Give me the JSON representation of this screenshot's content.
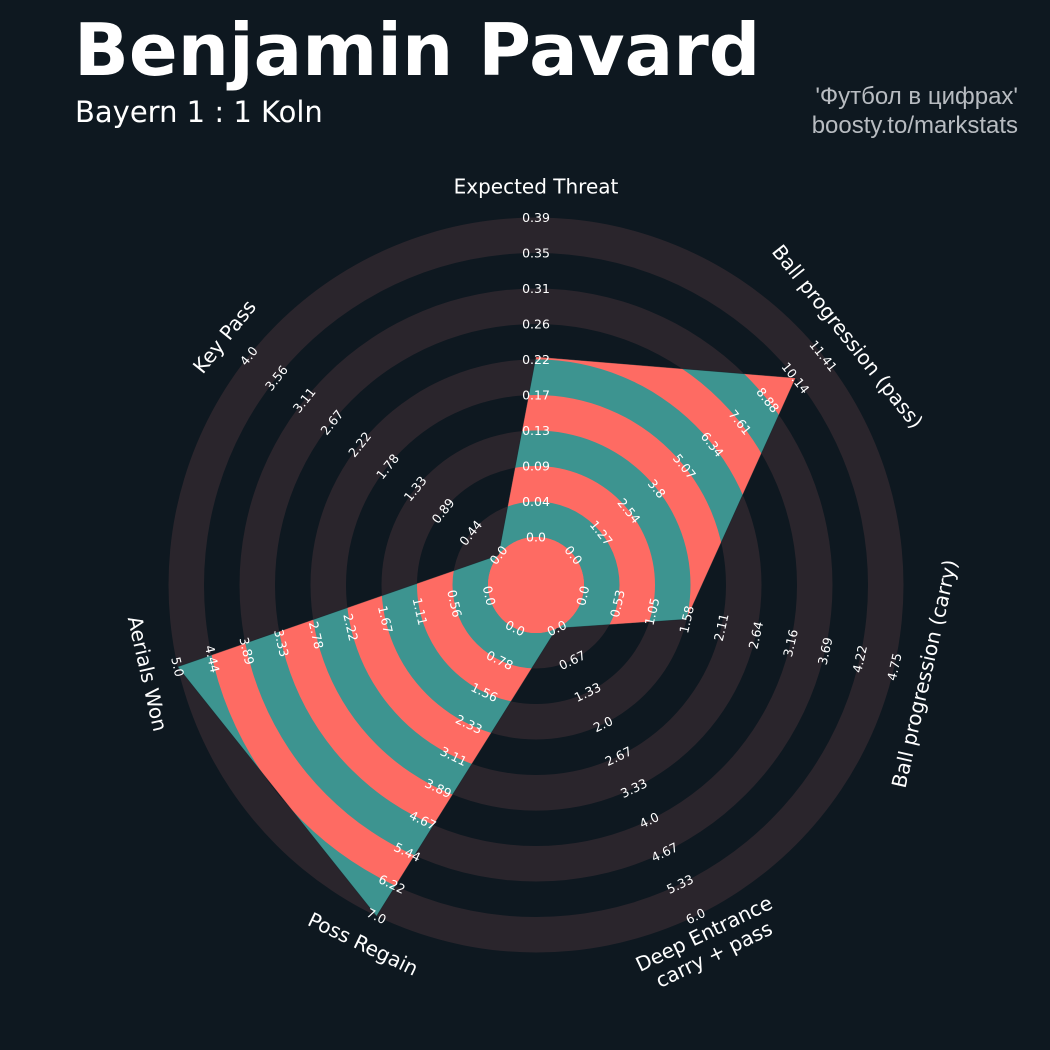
{
  "title": "Benjamin Pavard",
  "subtitle": "Bayern 1 : 1 Koln",
  "credit": {
    "line1": "'Футбол в цифрах'",
    "line2": "boosty.to/markstats"
  },
  "colors": {
    "background": "#0e1820",
    "ring_band": "#2a252c",
    "fill_teal": "#3d9490",
    "fill_coral": "#fe6b63",
    "text": "#ffffff",
    "credit_text": "#b8bcc1"
  },
  "chart_data": {
    "type": "radar",
    "title": "Benjamin Pavard",
    "subtitle": "Bayern 1 : 1 Koln",
    "params": [
      {
        "name": "Expected Threat",
        "lines": [
          "Expected Threat"
        ],
        "value": 0.22,
        "ticks": [
          "0.0",
          "0.04",
          "0.09",
          "0.13",
          "0.17",
          "0.22",
          "0.26",
          "0.31",
          "0.35",
          "0.39"
        ]
      },
      {
        "name": "Ball progression (pass)",
        "lines": [
          "Ball progression (pass)"
        ],
        "value": 10.14,
        "ticks": [
          "0.0",
          "1.27",
          "2.54",
          "3.8",
          "5.07",
          "6.34",
          "7.61",
          "8.88",
          "10.14",
          "11.41"
        ]
      },
      {
        "name": "Ball progression (carry)",
        "lines": [
          "Ball progression (carry)"
        ],
        "value": 1.58,
        "ticks": [
          "0.0",
          "0.53",
          "1.05",
          "1.58",
          "2.11",
          "2.64",
          "3.16",
          "3.69",
          "4.22",
          "4.75"
        ]
      },
      {
        "name": "Deep Entrance carry + pass",
        "lines": [
          "Deep Entrance",
          "carry + pass"
        ],
        "value": 0.0,
        "ticks": [
          "0.0",
          "0.67",
          "1.33",
          "2.0",
          "2.67",
          "3.33",
          "4.0",
          "4.67",
          "5.33",
          "6.0"
        ]
      },
      {
        "name": "Poss Regain",
        "lines": [
          "Poss Regain"
        ],
        "value": 7.0,
        "ticks": [
          "0.0",
          "0.78",
          "1.56",
          "2.33",
          "3.11",
          "3.89",
          "4.67",
          "5.44",
          "6.22",
          "7.0"
        ]
      },
      {
        "name": "Aerials Won",
        "lines": [
          "Aerials Won"
        ],
        "value": 5.0,
        "ticks": [
          "0.0",
          "0.56",
          "1.11",
          "1.67",
          "2.22",
          "2.78",
          "3.33",
          "3.89",
          "4.44",
          "5.0"
        ]
      },
      {
        "name": "Key Pass",
        "lines": [
          "Key Pass"
        ],
        "value": 0.0,
        "ticks": [
          "0.0",
          "0.44",
          "0.89",
          "1.33",
          "1.78",
          "2.22",
          "2.67",
          "3.11",
          "3.56",
          "4.0"
        ]
      }
    ]
  }
}
